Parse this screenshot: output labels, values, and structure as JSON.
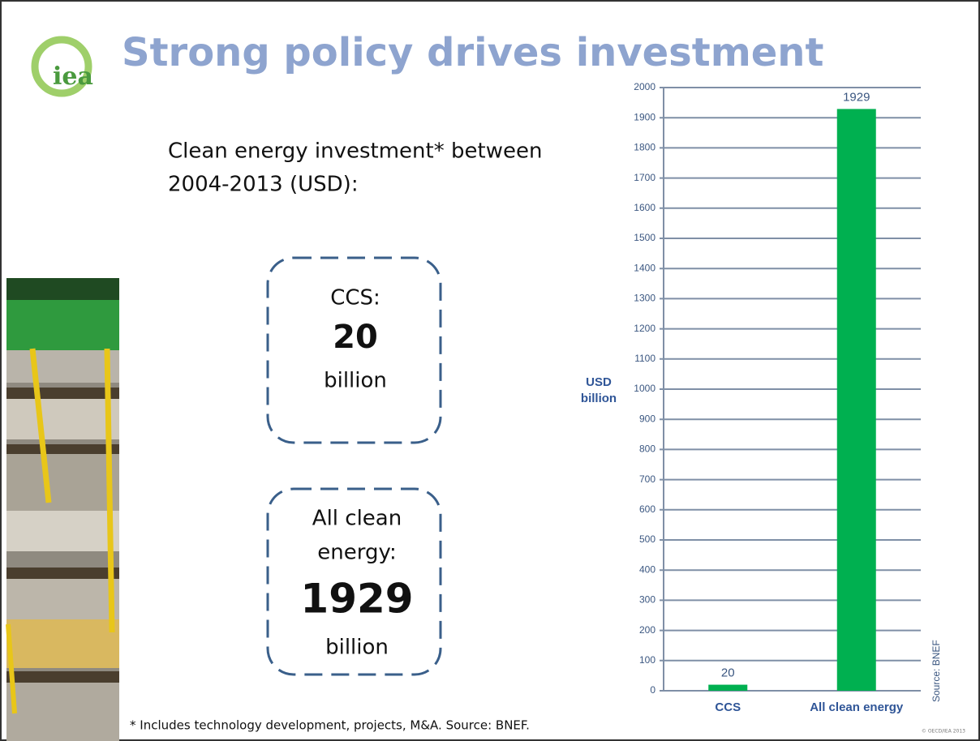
{
  "logo": "iea",
  "title": "Strong policy drives investment",
  "intro": [
    "Clean energy investment* between",
    "2004-2013 (USD):"
  ],
  "boxes": [
    {
      "lines": [
        "CCS:",
        "20",
        "billion"
      ]
    },
    {
      "lines": [
        "All clean",
        "energy:",
        "1929",
        "billion"
      ]
    }
  ],
  "footnote": "* Includes technology development, projects, M&A. Source: BNEF.",
  "copyright": "© OECD/IEA 2013",
  "chart_data": {
    "type": "bar",
    "ylabel": [
      "USD",
      "billion"
    ],
    "categories": [
      "CCS",
      "All clean energy"
    ],
    "values": [
      20,
      1929
    ],
    "color": "#00b050",
    "ylim": [
      0,
      2000
    ],
    "yticks": [
      0,
      100,
      200,
      300,
      400,
      500,
      600,
      700,
      800,
      900,
      1000,
      1100,
      1200,
      1300,
      1400,
      1500,
      1600,
      1700,
      1800,
      1900,
      2000
    ],
    "grid": true,
    "source": "Source: BNEF"
  }
}
